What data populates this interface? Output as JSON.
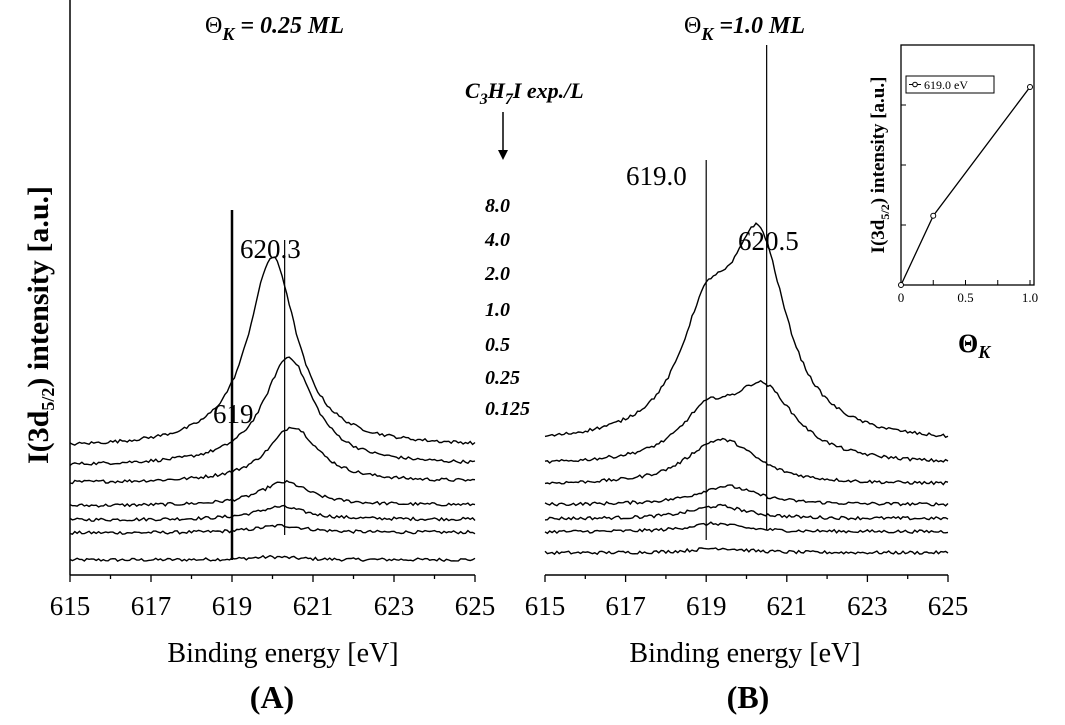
{
  "figure": {
    "y_axis_label": "I(3d",
    "y_axis_sub": "5/2",
    "y_axis_tail": ") intensity [a.u.]",
    "exposure_header_main": "C",
    "exposure_header_s1": "3",
    "exposure_header_mid": "H",
    "exposure_header_s2": "7",
    "exposure_header_tail": "I exp./L",
    "exposure_labels": [
      "8.0",
      "4.0",
      "2.0",
      "1.0",
      "0.5",
      "0.25",
      "0.125"
    ]
  },
  "chart_data": [
    {
      "type": "line",
      "id": "A",
      "panel_label": "(A)",
      "title_symbol": "Θ",
      "title_sub": "K",
      "title_value": " = 0.25 ML",
      "xlabel": "Binding energy [eV]",
      "ylabel": "I(3d 5/2) intensity [a.u.]",
      "xlim": [
        615,
        625
      ],
      "xticks": [
        "615",
        "617",
        "619",
        "621",
        "623",
        "625"
      ],
      "x_range": [
        615,
        625
      ],
      "series": [
        {
          "name": "0.125",
          "peak_center": 620.0,
          "peak_height": 0.05,
          "peak_width": 1.4,
          "baseline_left": 0.02,
          "baseline_right": 0.03
        },
        {
          "name": "0.25",
          "peak_center": 620.2,
          "peak_height": 0.12,
          "peak_width": 1.5,
          "baseline_left": 0.08,
          "baseline_right": 0.1
        },
        {
          "name": "0.5",
          "peak_center": 620.2,
          "peak_height": 0.22,
          "peak_width": 1.5,
          "baseline_left": 0.11,
          "baseline_right": 0.13
        },
        {
          "name": "1.0",
          "peak_center": 620.3,
          "peak_height": 0.4,
          "peak_width": 1.5,
          "baseline_left": 0.14,
          "baseline_right": 0.17
        },
        {
          "name": "2.0",
          "peak_center": 620.5,
          "peak_height": 0.95,
          "peak_width": 1.5,
          "baseline_left": 0.2,
          "baseline_right": 0.24
        },
        {
          "name": "4.0",
          "peak_center": 620.4,
          "peak_height": 1.85,
          "peak_width": 1.5,
          "baseline_left": 0.27,
          "baseline_right": 0.31
        },
        {
          "name": "8.0",
          "peak_center": 620.0,
          "peak_height": 3.25,
          "peak_width": 1.45,
          "baseline_left": 0.32,
          "baseline_right": 0.36
        }
      ],
      "markers": [
        {
          "x": 619.0,
          "label": "619"
        },
        {
          "x": 620.3,
          "label": "620.3"
        }
      ]
    },
    {
      "type": "line",
      "id": "B",
      "panel_label": "(B)",
      "title_symbol": "Θ",
      "title_sub": "K",
      "title_value": " =1.0 ML",
      "xlabel": "Binding energy [eV]",
      "xlim": [
        615,
        625
      ],
      "xticks": [
        "615",
        "617",
        "619",
        "621",
        "623",
        "625"
      ],
      "series": [
        {
          "name": "0.125",
          "peak_center": 619.3,
          "peak_height": 0.08,
          "peak_width": 1.6,
          "baseline_left": 0.01,
          "baseline_right": 0.02
        },
        {
          "name": "0.25",
          "peak_center": 619.2,
          "peak_height": 0.14,
          "peak_width": 1.6,
          "baseline_left": 0.08,
          "baseline_right": 0.09
        },
        {
          "name": "0.5",
          "peak_center": 619.3,
          "peak_height": 0.22,
          "peak_width": 1.7,
          "baseline_left": 0.11,
          "baseline_right": 0.12
        },
        {
          "name": "1.0",
          "peak_center": 619.5,
          "peak_height": 0.32,
          "peak_width": 1.8,
          "baseline_left": 0.15,
          "baseline_right": 0.16
        },
        {
          "name": "2.0",
          "peak_center": 619.6,
          "peak_height": 0.55,
          "peak_width": 1.9,
          "baseline_left": 0.2,
          "baseline_right": 0.22
        },
        {
          "name": "4.0",
          "peak_center": 620.4,
          "peak_height": 1.25,
          "peak_width": 2.0,
          "baseline_left": 0.26,
          "baseline_right": 0.29
        },
        {
          "name": "8.0",
          "peak_center": 620.3,
          "peak_height": 3.25,
          "peak_width": 1.7,
          "baseline_left": 0.3,
          "baseline_right": 0.33
        }
      ],
      "markers": [
        {
          "x": 619.0,
          "label": "619.0"
        },
        {
          "x": 620.5,
          "label": "620.5"
        }
      ]
    },
    {
      "type": "line",
      "id": "inset",
      "xlabel_symbol": "Θ",
      "xlabel_sub": "K",
      "ylabel_main": "I(3d",
      "ylabel_sub": "5/2",
      "ylabel_tail": ") intensity [a.u.]",
      "xlim": [
        0,
        1.0
      ],
      "xticks": [
        "0",
        "0.5",
        "1.0"
      ],
      "series": [
        {
          "name": "619.0 eV",
          "x": [
            0,
            0.25,
            1.0
          ],
          "y": [
            0.0,
            0.35,
            1.0
          ]
        }
      ]
    }
  ]
}
